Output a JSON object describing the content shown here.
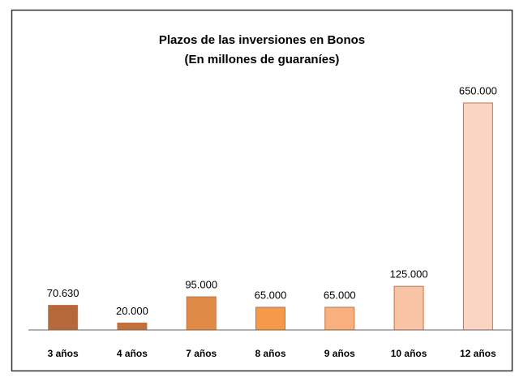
{
  "chart_data": {
    "type": "bar",
    "title": "Plazos de las inversiones en Bonos",
    "subtitle": "(En millones de guaraníes)",
    "categories": [
      "3 años",
      "4 años",
      "7 años",
      "8 años",
      "9 años",
      "10 años",
      "12 años"
    ],
    "values": [
      70630,
      20000,
      95000,
      65000,
      65000,
      125000,
      650000
    ],
    "value_labels": [
      "70.630",
      "20.000",
      "95.000",
      "65.000",
      "65.000",
      "125.000",
      "650.000"
    ],
    "colors": [
      "#b5693a",
      "#c0703a",
      "#e08a48",
      "#f59a4b",
      "#f8b07e",
      "#f9c3a5",
      "#fbd5c3"
    ]
  }
}
